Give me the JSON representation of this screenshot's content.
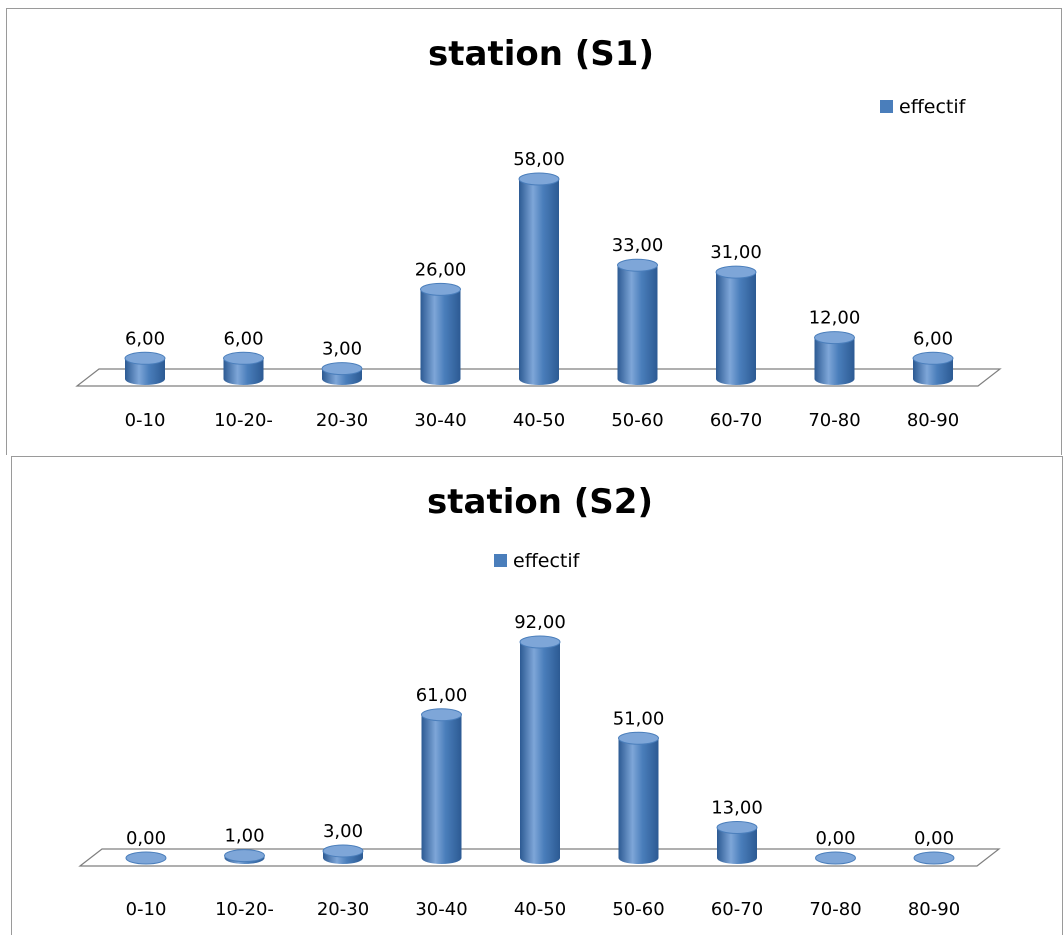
{
  "colors": {
    "bar": "#4a7ebb",
    "bar_dark": "#2c5a93",
    "bar_light": "#7ea6d8",
    "floor": "#ffffff",
    "floor_stroke": "#7f7f7f"
  },
  "chart_data": [
    {
      "type": "bar",
      "title": "station (S1)",
      "categories": [
        "0-10",
        "10-20-",
        "20-30",
        "30-40",
        "40-50",
        "50-60",
        "60-70",
        "70-80",
        "80-90"
      ],
      "series": [
        {
          "name": "effectif",
          "values": [
            6,
            6,
            3,
            26,
            58,
            33,
            31,
            12,
            6
          ],
          "labels": [
            "6,00",
            "6,00",
            "3,00",
            "26,00",
            "58,00",
            "33,00",
            "31,00",
            "12,00",
            "6,00"
          ]
        }
      ],
      "ylim": [
        0,
        58
      ],
      "grid": false,
      "legend_position": "top-right",
      "style": "3d-cylinder"
    },
    {
      "type": "bar",
      "title": "station (S2)",
      "categories": [
        "0-10",
        "10-20-",
        "20-30",
        "30-40",
        "40-50",
        "50-60",
        "60-70",
        "70-80",
        "80-90"
      ],
      "series": [
        {
          "name": "effectif",
          "values": [
            0,
            1,
            3,
            61,
            92,
            51,
            13,
            0,
            0
          ],
          "labels": [
            "0,00",
            "1,00",
            "3,00",
            "61,00",
            "92,00",
            "51,00",
            "13,00",
            "0,00",
            "0,00"
          ]
        }
      ],
      "ylim": [
        0,
        92
      ],
      "grid": false,
      "legend_position": "top",
      "style": "3d-cylinder"
    }
  ]
}
